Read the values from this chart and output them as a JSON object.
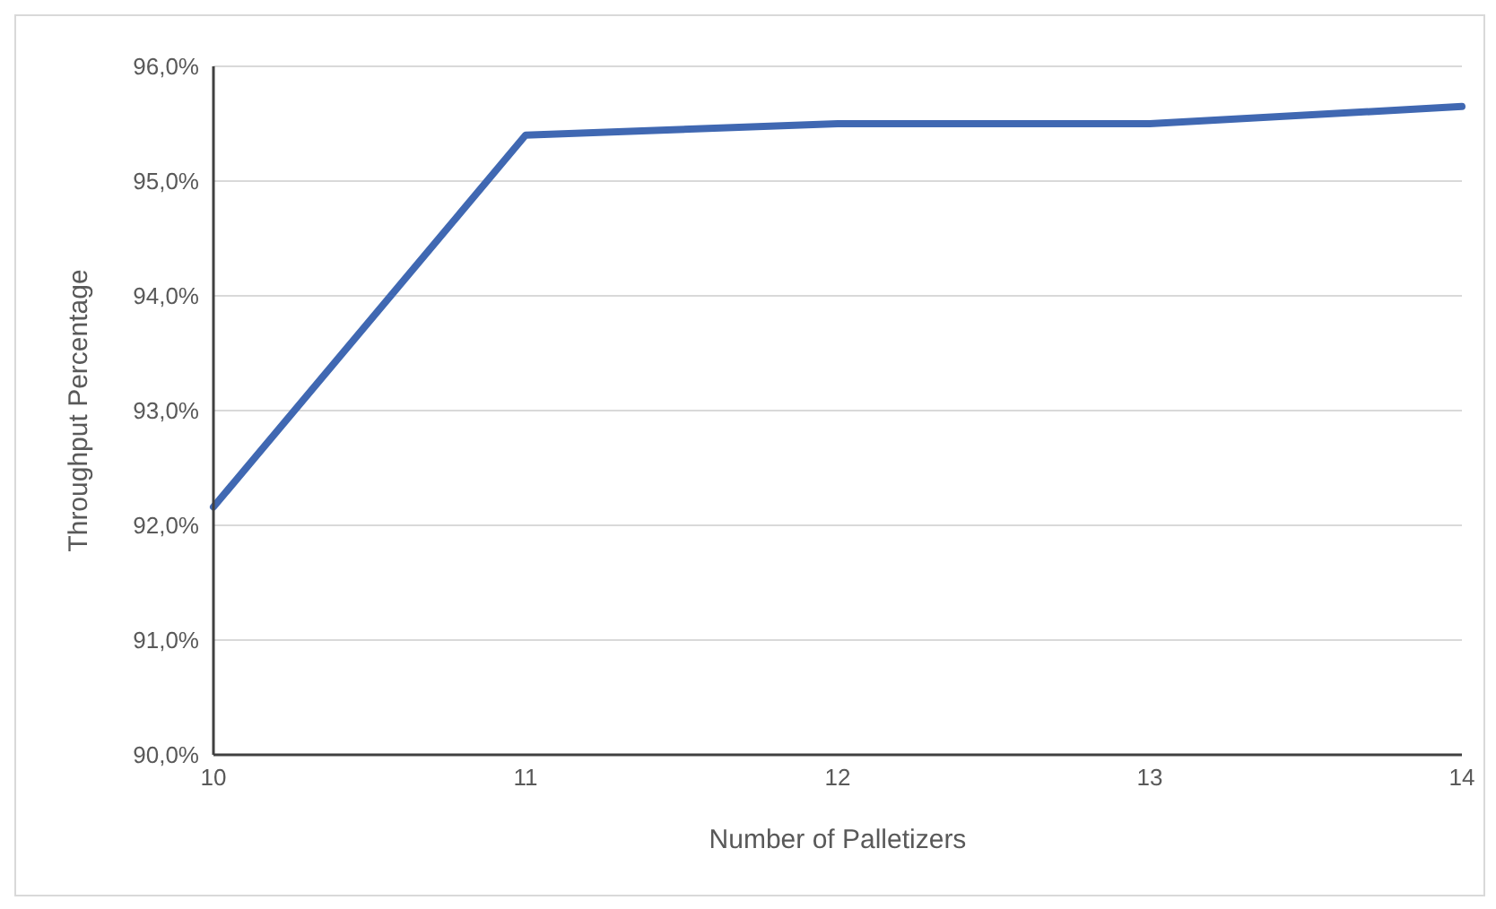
{
  "chart_data": {
    "type": "line",
    "xlabel": "Number of Palletizers",
    "ylabel": "Throughput Percentage",
    "categories": [
      "10",
      "11",
      "12",
      "13",
      "14"
    ],
    "series": [
      {
        "color": "#4068b2",
        "values": [
          92.16,
          95.4,
          95.5,
          95.5,
          95.65
        ]
      }
    ],
    "ylim": [
      90,
      96
    ],
    "yticks": [
      {
        "value": 90,
        "label": "90,0%"
      },
      {
        "value": 91,
        "label": "91,0%"
      },
      {
        "value": 92,
        "label": "92,0%"
      },
      {
        "value": 93,
        "label": "93,0%"
      },
      {
        "value": 94,
        "label": "94,0%"
      },
      {
        "value": 95,
        "label": "95,0%"
      },
      {
        "value": 96,
        "label": "96,0%"
      }
    ],
    "grid": "y",
    "legend": false,
    "marker": "none",
    "line_style": "solid"
  }
}
